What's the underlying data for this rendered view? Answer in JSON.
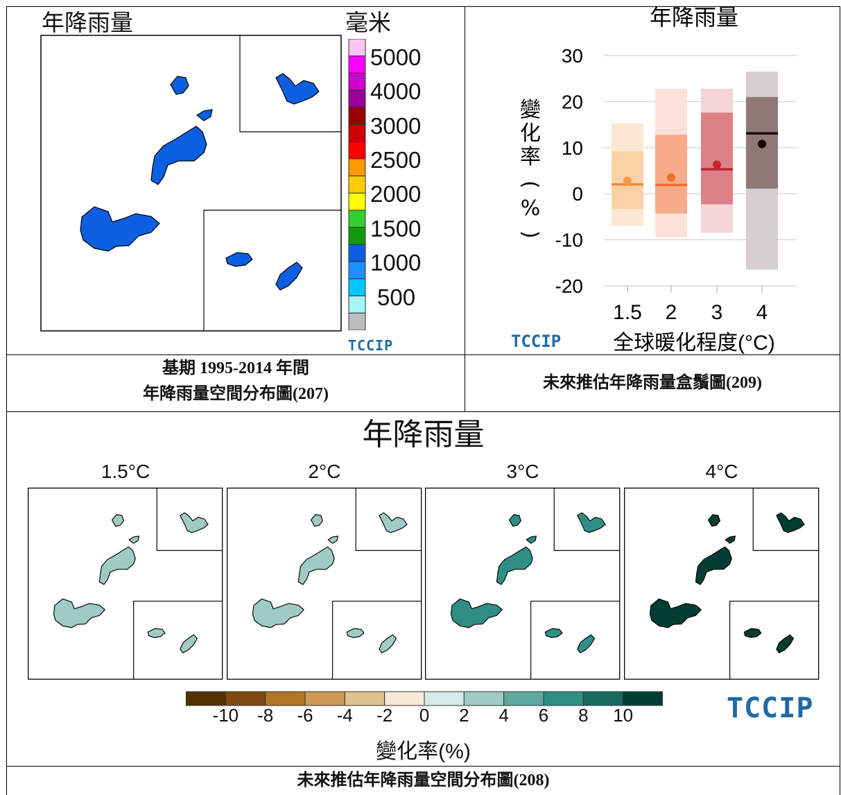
{
  "baseline_map": {
    "title": "年降雨量",
    "unit": "毫米",
    "colorbar_labels": [
      "5000",
      "4000",
      "3000",
      "2500",
      "2000",
      "1500",
      "1000",
      "500"
    ],
    "colorbar_colors": [
      "#f7c6f3",
      "#ff00ff",
      "#cc00cc",
      "#990099",
      "#990000",
      "#cc0000",
      "#ff0000",
      "#ff9900",
      "#ffcc00",
      "#ffff00",
      "#33cc33",
      "#119911",
      "#0b5fe0",
      "#1e90ff",
      "#00c8ff",
      "#a6f5fa",
      "#bdbdbd"
    ],
    "fill_color": "#0b5fe0",
    "logo": "TCCIP",
    "caption_line1": "基期 1995-2014 年間",
    "caption_line2": "年降雨量空間分布圖(207)"
  },
  "chart_data": {
    "type": "box",
    "title": "年降雨量",
    "xlabel": "全球暖化程度(°C)",
    "ylabel": "變化率(%)",
    "ylim": [
      -20,
      30
    ],
    "yticks": [
      -20,
      -10,
      0,
      10,
      20,
      30
    ],
    "categories": [
      "1.5",
      "2",
      "3",
      "4"
    ],
    "boxes": [
      {
        "category": "1.5",
        "whisker_low": -7,
        "q1": -3.3,
        "median": 2,
        "q3": 9.2,
        "whisker_high": 15.3,
        "mean": 2.8,
        "color_outer": "#fde7d2",
        "color_inner": "#fad0a6",
        "line_color": "#f08a3c",
        "dot_color": "#f59a4a"
      },
      {
        "category": "2",
        "whisker_low": -9.5,
        "q1": -4.3,
        "median": 1.9,
        "q3": 12.8,
        "whisker_high": 22.8,
        "mean": 3.5,
        "color_outer": "#fde1d8",
        "color_inner": "#f7ab88",
        "line_color": "#ec6d2e",
        "dot_color": "#ef6f2b"
      },
      {
        "category": "3",
        "whisker_low": -8.5,
        "q1": -2.3,
        "median": 5.3,
        "q3": 17.6,
        "whisker_high": 22.8,
        "mean": 6.3,
        "color_outer": "#f4d4d8",
        "color_inner": "#dc8188",
        "line_color": "#c4262e",
        "dot_color": "#c4262e"
      },
      {
        "category": "4",
        "whisker_low": -16.5,
        "q1": 1.1,
        "median": 13.1,
        "q3": 21,
        "whisker_high": 26.5,
        "mean": 10.8,
        "color_outer": "#d6cfcf",
        "color_inner": "#8f7878",
        "line_color": "#1a0002",
        "dot_color": "#1a0000"
      }
    ],
    "logo": "TCCIP",
    "caption": "未來推估年降雨量盒鬚圖(209)"
  },
  "future_maps": {
    "title": "年降雨量",
    "panels": [
      {
        "label": "1.5°C",
        "fill": "#9fcbc4"
      },
      {
        "label": "2°C",
        "fill": "#9fcbc4"
      },
      {
        "label": "3°C",
        "fill": "#2f8f84"
      },
      {
        "label": "4°C",
        "fill": "#003d33"
      }
    ],
    "colorbar_ticks": [
      "-10",
      "-8",
      "-6",
      "-4",
      "-2",
      "0",
      "2",
      "4",
      "6",
      "8",
      "10"
    ],
    "colorbar_colors": [
      "#543005",
      "#7f4a10",
      "#b07527",
      "#cd9a56",
      "#dfc291",
      "#f5ead6",
      "#d4ebe8",
      "#9fcbc4",
      "#5fa89d",
      "#2f8f84",
      "#166b5e",
      "#003d33"
    ],
    "colorbar_label": "變化率(%)",
    "logo": "TCCIP",
    "caption": "未來推估年降雨量空間分布圖(208)"
  }
}
